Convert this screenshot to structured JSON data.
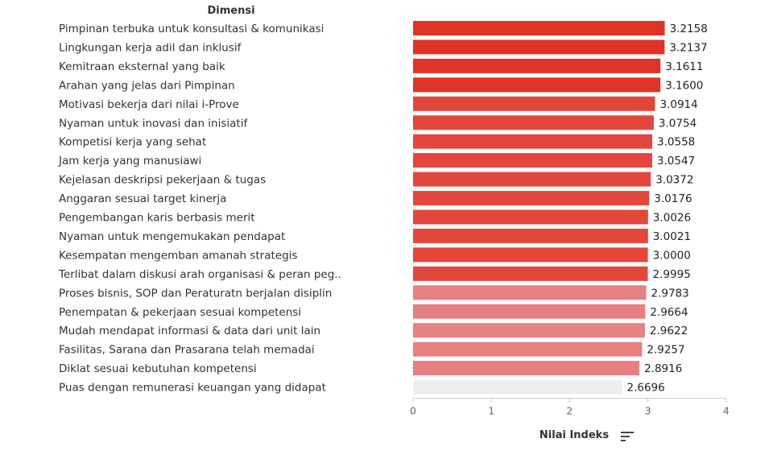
{
  "chart_data": {
    "type": "bar",
    "orientation": "horizontal",
    "category_header": "Dimensi",
    "xlabel": "Nilai Indeks",
    "xlim": [
      0,
      4
    ],
    "xticks": [
      "0",
      "1",
      "2",
      "3",
      "4"
    ],
    "grid": false,
    "sort_icon": "sort-descending-icon",
    "categories": [
      "Pimpinan terbuka untuk konsultasi & komunikasi",
      "Lingkungan kerja adil dan inklusif",
      "Kemitraan eksternal yang baik",
      "Arahan yang jelas dari Pimpinan",
      "Motivasi bekerja dari nilai i-Prove",
      "Nyaman untuk inovasi dan inisiatif",
      "Kompetisi kerja yang sehat",
      "Jam kerja yang manusiawi",
      "Kejelasan deskripsi pekerjaan & tugas",
      "Anggaran sesuai target kinerja",
      "Pengembangan karis berbasis merit",
      "Nyaman untuk mengemukakan pendapat",
      "Kesempatan mengemban amanah strategis",
      "Terlibat dalam diskusi arah organisasi & peran peg..",
      "Proses bisnis, SOP dan Peraturatn berjalan disiplin",
      "Penempatan & pekerjaan sesuai kompetensi",
      "Mudah mendapat informasi & data dari unit lain",
      "Fasilitas, Sarana dan Prasarana telah memadai",
      "Diklat sesuai kebutuhan kompetensi",
      "Puas dengan remunerasi keuangan yang didapat"
    ],
    "values": [
      3.2158,
      3.2137,
      3.1611,
      3.16,
      3.0914,
      3.0754,
      3.0558,
      3.0547,
      3.0372,
      3.0176,
      3.0026,
      3.0021,
      3.0,
      2.9995,
      2.9783,
      2.9664,
      2.9622,
      2.9257,
      2.8916,
      2.6696
    ],
    "value_labels": [
      "3.2158",
      "3.2137",
      "3.1611",
      "3.1600",
      "3.0914",
      "3.0754",
      "3.0558",
      "3.0547",
      "3.0372",
      "3.0176",
      "3.0026",
      "3.0021",
      "3.0000",
      "2.9995",
      "2.9783",
      "2.9664",
      "2.9622",
      "2.9257",
      "2.8916",
      "2.6696"
    ],
    "colors": [
      "#e03326",
      "#e03326",
      "#e03326",
      "#e03326",
      "#e3473c",
      "#e3473c",
      "#e3473c",
      "#e3473c",
      "#e3473c",
      "#e3473c",
      "#e3473c",
      "#e3473c",
      "#e3473c",
      "#e3473c",
      "#e78080",
      "#e78080",
      "#e78080",
      "#e78080",
      "#e78080",
      "#eeeeee"
    ]
  }
}
